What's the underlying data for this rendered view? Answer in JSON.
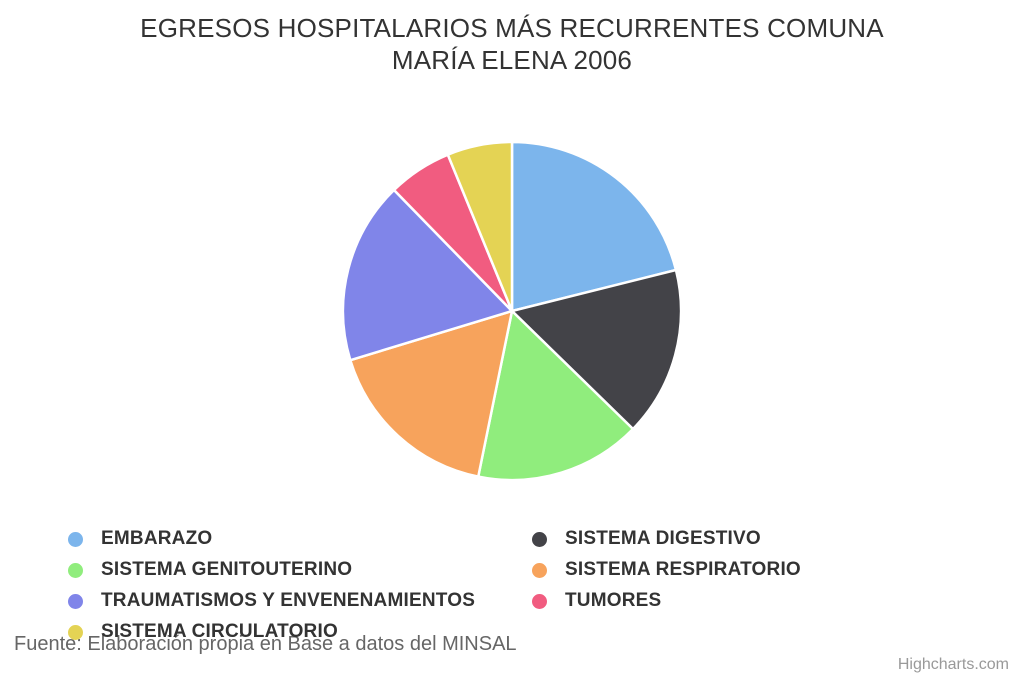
{
  "header": {
    "title_line1": "EGRESOS HOSPITALARIOS MÁS RECURRENTES COMUNA",
    "title_line2": "MARÍA ELENA 2006"
  },
  "chart_data": {
    "type": "pie",
    "title": "EGRESOS HOSPITALARIOS MÁS RECURRENTES COMUNA MARÍA ELENA 2006",
    "values_unit": "percent, estimated from slice angles",
    "start_angle_deg": 0,
    "direction": "clockwise",
    "legend_position": "bottom-left, two columns",
    "slices": [
      {
        "name": "EMBARAZO",
        "value": 21.1,
        "angle_deg": 76.0,
        "color": "#7cb5ec"
      },
      {
        "name": "SISTEMA DIGESTIVO",
        "value": 16.2,
        "angle_deg": 58.5,
        "color": "#434348"
      },
      {
        "name": "SISTEMA GENITOUTERINO",
        "value": 15.9,
        "angle_deg": 57.1,
        "color": "#90ed7d"
      },
      {
        "name": "SISTEMA RESPIRATORIO",
        "value": 17.1,
        "angle_deg": 61.4,
        "color": "#f7a35c"
      },
      {
        "name": "TRAUMATISMOS Y ENVENENAMIENTOS",
        "value": 17.4,
        "angle_deg": 62.5,
        "color": "#8085e9"
      },
      {
        "name": "TUMORES",
        "value": 6.1,
        "angle_deg": 22.0,
        "color": "#f15c80"
      },
      {
        "name": "SISTEMA CIRCULATORIO",
        "value": 6.2,
        "angle_deg": 22.5,
        "color": "#e4d354"
      }
    ]
  },
  "footer": {
    "source": "Fuente: Elaboración propia en Base a datos del MINSAL",
    "credit": "Highcharts.com"
  },
  "colors": {
    "background": "#ffffff",
    "title_text": "#333333",
    "legend_text": "#333333",
    "source_text": "#666666",
    "credit_text": "#999999",
    "slice_border": "#ffffff"
  }
}
